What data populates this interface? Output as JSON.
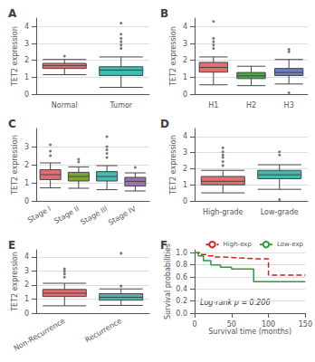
{
  "chart_data": [
    {
      "type": "boxplot",
      "title": "A",
      "categories": [
        "Normal",
        "Tumor"
      ],
      "colors": [
        "#E07070",
        "#45B8B0"
      ],
      "boxes": [
        {
          "q1": 1.52,
          "median": 1.68,
          "q3": 1.82,
          "whislo": 1.15,
          "whishi": 2.05,
          "fliers_high": [
            2.25
          ],
          "fliers_low": []
        },
        {
          "q1": 1.1,
          "median": 1.42,
          "q3": 1.62,
          "whislo": 0.4,
          "whishi": 2.2,
          "fliers_high": [
            2.7,
            2.9,
            3.1,
            3.3,
            3.55,
            4.2
          ],
          "fliers_low": []
        }
      ],
      "ylabel": "TET2 expression",
      "ylim": [
        0.0,
        4.5
      ],
      "yticks": [
        0,
        1,
        2,
        3,
        4
      ],
      "grid": true
    },
    {
      "type": "boxplot",
      "title": "B",
      "categories": [
        "H1",
        "H2",
        "H3"
      ],
      "colors": [
        "#E07070",
        "#48A848",
        "#6B80C0"
      ],
      "boxes": [
        {
          "q1": 1.3,
          "median": 1.58,
          "q3": 1.88,
          "whislo": 0.55,
          "whishi": 2.2,
          "fliers_high": [
            2.7,
            2.9,
            3.1,
            3.3,
            4.3
          ],
          "fliers_low": []
        },
        {
          "q1": 0.92,
          "median": 1.08,
          "q3": 1.28,
          "whislo": 0.5,
          "whishi": 1.65,
          "fliers_high": [],
          "fliers_low": []
        },
        {
          "q1": 1.1,
          "median": 1.28,
          "q3": 1.52,
          "whislo": 0.6,
          "whishi": 2.05,
          "fliers_high": [
            2.5,
            2.65
          ],
          "fliers_low": [
            0.08
          ]
        }
      ],
      "ylabel": "TET2 expression",
      "ylim": [
        0.0,
        4.5
      ],
      "yticks": [
        0,
        1,
        2,
        3,
        4
      ],
      "grid": true
    },
    {
      "type": "boxplot",
      "title": "C",
      "categories": [
        "Stage I",
        "Stage II",
        "Stage III",
        "Stage IV"
      ],
      "colors": [
        "#E07070",
        "#78A830",
        "#45B8B0",
        "#9B72B0"
      ],
      "boxes": [
        {
          "q1": 1.18,
          "median": 1.45,
          "q3": 1.72,
          "whislo": 0.72,
          "whishi": 2.1,
          "fliers_high": [
            2.5,
            2.75,
            3.1
          ],
          "fliers_low": []
        },
        {
          "q1": 1.1,
          "median": 1.35,
          "q3": 1.58,
          "whislo": 0.7,
          "whishi": 1.88,
          "fliers_high": [
            2.15,
            2.3
          ],
          "fliers_low": []
        },
        {
          "q1": 1.1,
          "median": 1.35,
          "q3": 1.62,
          "whislo": 0.62,
          "whishi": 1.95,
          "fliers_high": [
            2.4,
            2.62,
            2.82,
            3.0,
            3.55
          ],
          "fliers_low": []
        },
        {
          "q1": 0.82,
          "median": 1.08,
          "q3": 1.3,
          "whislo": 0.55,
          "whishi": 1.55,
          "fliers_high": [
            1.85
          ],
          "fliers_low": []
        }
      ],
      "ylabel": "TET2 expression",
      "ylim": [
        0.0,
        4.0
      ],
      "yticks": [
        0,
        1,
        2,
        3
      ],
      "grid": true
    },
    {
      "type": "boxplot",
      "title": "D",
      "categories": [
        "High-grade",
        "Low-grade"
      ],
      "colors": [
        "#E07070",
        "#45B8B0"
      ],
      "boxes": [
        {
          "q1": 1.0,
          "median": 1.22,
          "q3": 1.52,
          "whislo": 0.5,
          "whishi": 1.9,
          "fliers_high": [
            2.2,
            2.45,
            2.7,
            2.85,
            3.05,
            3.3
          ],
          "fliers_low": []
        },
        {
          "q1": 1.38,
          "median": 1.62,
          "q3": 1.9,
          "whislo": 0.72,
          "whishi": 2.25,
          "fliers_high": [
            2.85,
            3.05
          ],
          "fliers_low": [
            0.08
          ]
        }
      ],
      "ylabel": "TET2 expression",
      "ylim": [
        0.0,
        4.5
      ],
      "yticks": [
        0,
        1,
        2,
        3,
        4
      ],
      "grid": true
    },
    {
      "type": "boxplot",
      "title": "E",
      "categories": [
        "Non-Recurrence",
        "Recurrence"
      ],
      "colors": [
        "#E07070",
        "#45B8B0"
      ],
      "boxes": [
        {
          "q1": 1.18,
          "median": 1.42,
          "q3": 1.68,
          "whislo": 0.52,
          "whishi": 2.12,
          "fliers_high": [
            2.55,
            2.78,
            2.98,
            3.15
          ],
          "fliers_low": []
        },
        {
          "q1": 0.92,
          "median": 1.12,
          "q3": 1.38,
          "whislo": 0.55,
          "whishi": 1.72,
          "fliers_high": [
            1.92,
            4.25
          ],
          "fliers_low": []
        }
      ],
      "ylabel": "TET2 expression",
      "ylim": [
        0.0,
        4.5
      ],
      "yticks": [
        0,
        1,
        2,
        3,
        4
      ],
      "grid": true
    },
    {
      "type": "step",
      "title": "F",
      "series": [
        {
          "name": "High-exp",
          "color": "#CC2222",
          "line_style": "dashed",
          "x": [
            0,
            8,
            15,
            25,
            40,
            55,
            70,
            85,
            95,
            100,
            115,
            150
          ],
          "values": [
            1.0,
            0.97,
            0.95,
            0.93,
            0.92,
            0.91,
            0.9,
            0.9,
            0.9,
            0.63,
            0.63,
            0.63
          ]
        },
        {
          "name": "Low-exp",
          "color": "#339933",
          "line_style": "solid",
          "x": [
            0,
            5,
            12,
            22,
            35,
            50,
            65,
            80,
            90,
            105,
            120,
            150
          ],
          "values": [
            1.0,
            0.95,
            0.87,
            0.8,
            0.76,
            0.73,
            0.73,
            0.52,
            0.52,
            0.52,
            0.52,
            0.52
          ]
        }
      ],
      "xlabel": "Survival time (months)",
      "ylabel": "Survival probabilities",
      "annotation": "Log-rank p = 0.206",
      "xlim": [
        0,
        150
      ],
      "ylim": [
        0.0,
        1.05
      ],
      "xticks": [
        0,
        50,
        100,
        150
      ],
      "yticks": [
        {
          "value": 0.0,
          "label": "0.0"
        },
        0.2,
        0.4,
        0.6,
        0.8,
        {
          "value": 1.0,
          "label": "1.0"
        }
      ],
      "legend": "upper right",
      "grid": true
    }
  ]
}
